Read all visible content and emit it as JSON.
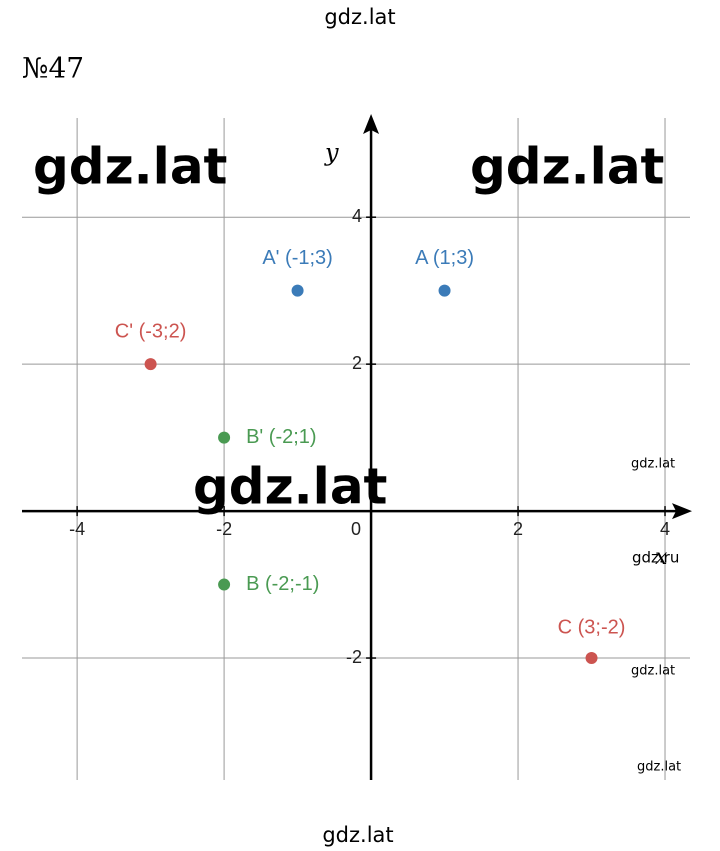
{
  "header": "gdz.lat",
  "problem": "№47",
  "footer": "gdz.lat",
  "watermarks": {
    "big": [
      "gdz.lat",
      "gdz.lat",
      "gdz.lat"
    ],
    "small": [
      "gdz.lat",
      "gdz.ru",
      "gdz.lat",
      "gdz.lat"
    ]
  },
  "chart_data": {
    "type": "scatter",
    "x_label": "x",
    "y_label": "y",
    "xlim": [
      -4.75,
      4.34
    ],
    "ylim": [
      -3.66,
      5.35
    ],
    "xticks": [
      -4,
      -2,
      0,
      2,
      4
    ],
    "yticks": [
      -2,
      2,
      4
    ],
    "grid": true,
    "points": [
      {
        "label": "A (1;3)",
        "x": 1,
        "y": 3,
        "color": "#3b7bb8"
      },
      {
        "label": "A' (-1;3)",
        "x": -1,
        "y": 3,
        "color": "#3b7bb8"
      },
      {
        "label": "C' (-3;2)",
        "x": -3,
        "y": 2,
        "color": "#cc5450"
      },
      {
        "label": "B' (-2;1)",
        "x": -2,
        "y": 1,
        "color": "#4a9a52"
      },
      {
        "label": "B (-2;-1)",
        "x": -2,
        "y": -1,
        "color": "#4a9a52"
      },
      {
        "label": "C (3;-2)",
        "x": 3,
        "y": -2,
        "color": "#cc5450"
      }
    ]
  }
}
